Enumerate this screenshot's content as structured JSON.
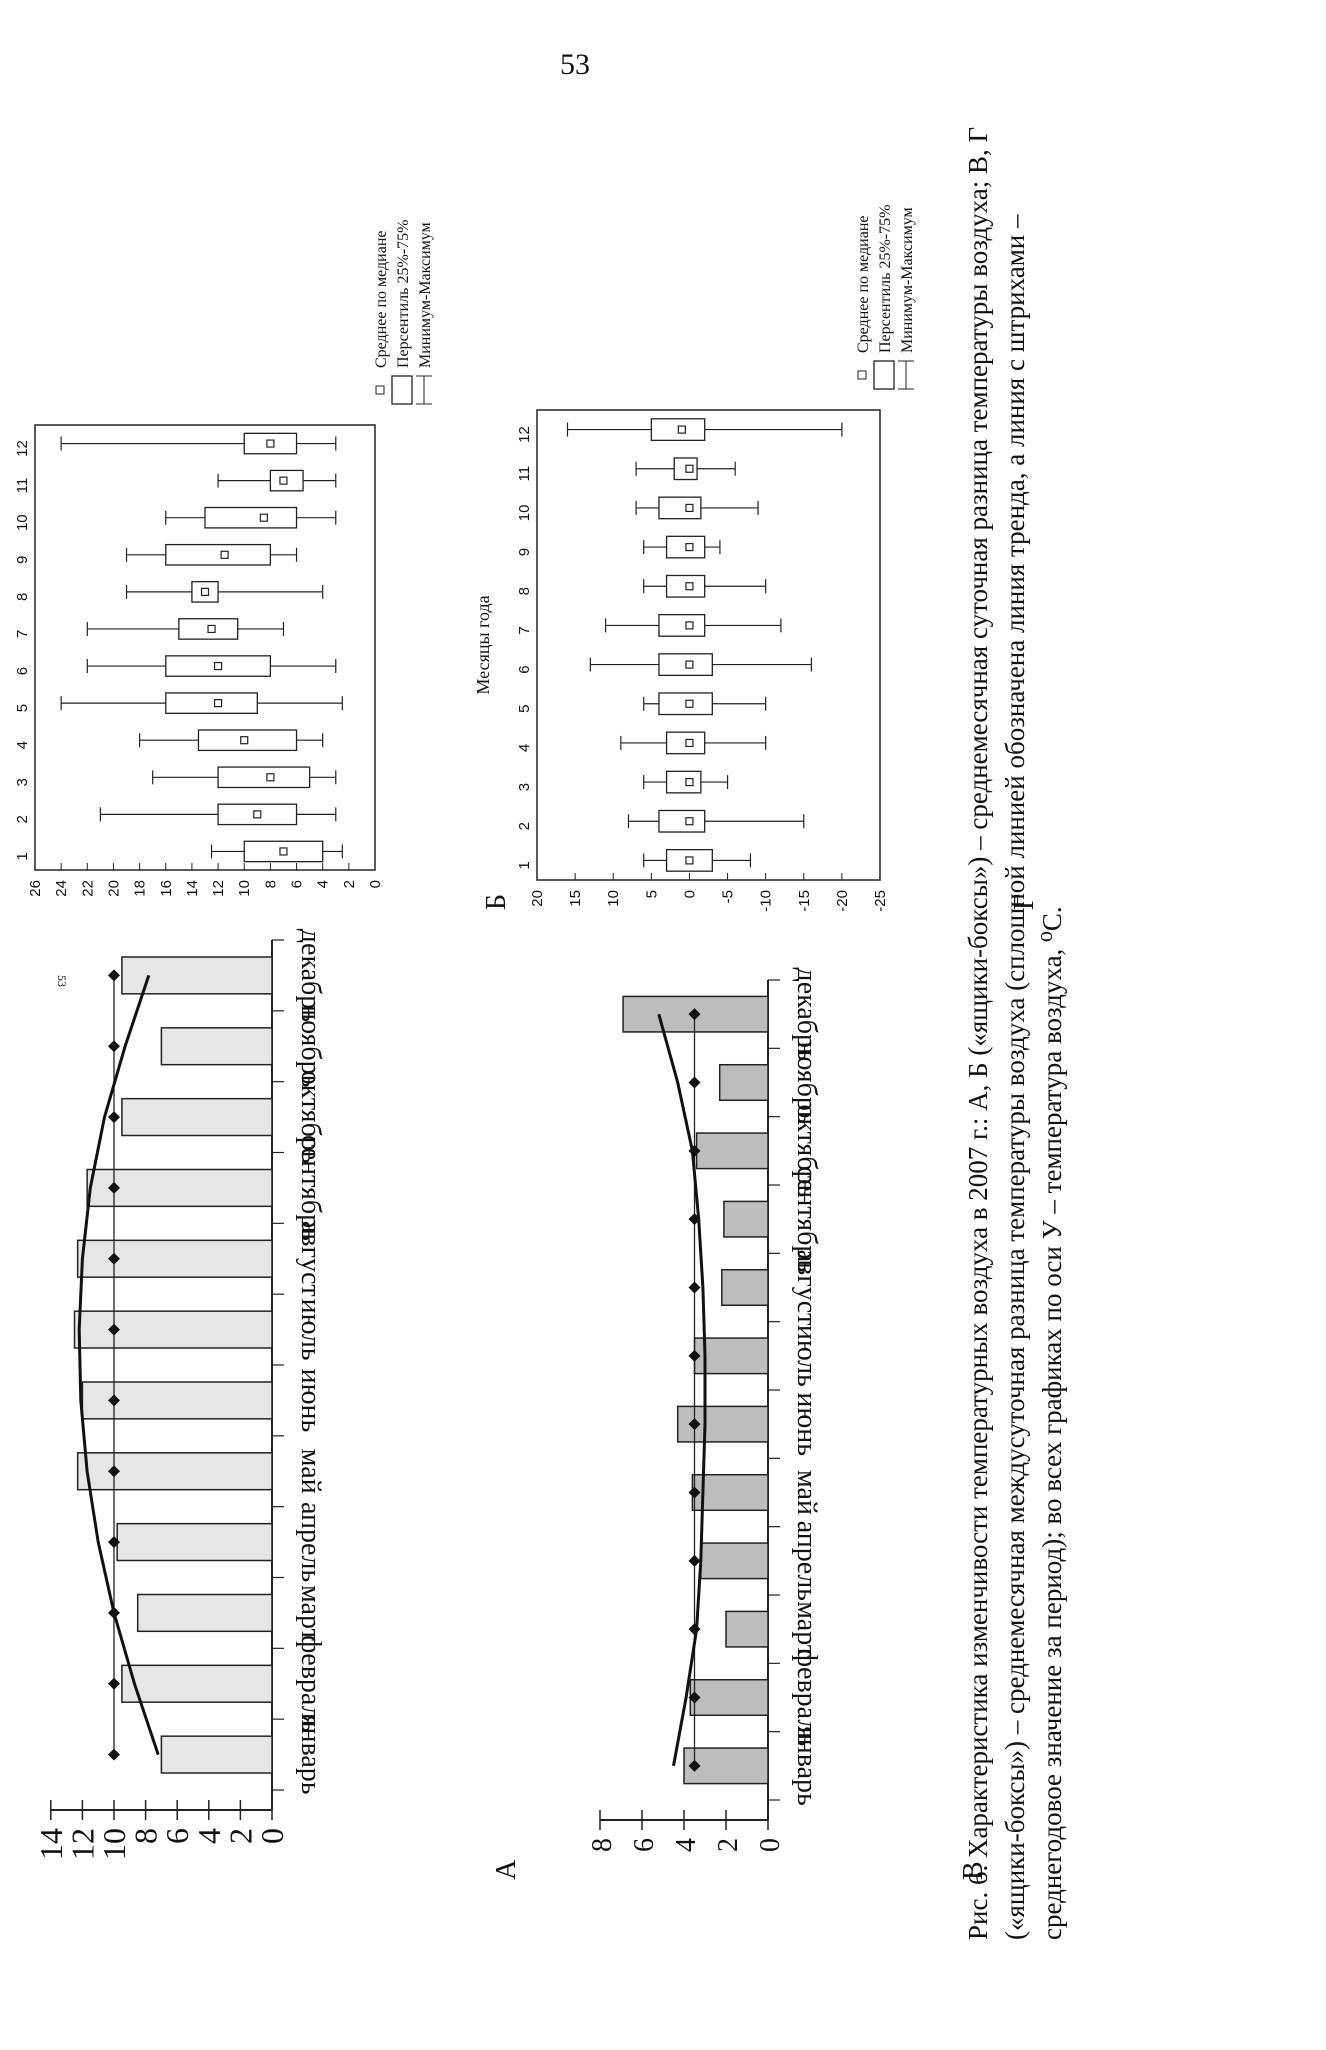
{
  "page_number": "53",
  "running_head": "53",
  "caption": "Рис. 6. Характеристика изменчивости температурных воздуха в 2007 г.: А, Б («ящики-боксы») – среднемесячная суточная разница температуры воздуха; В, Г («ящики-боксы») – среднемесячная междусуточная разница температуры воздуха (сплошной линией обозначена линия тренда, а линия с штрихами – среднегодовое значение за период); во всех графиках по оси У – температура воздуха, ⁰С.",
  "panel_labels": {
    "a": "А",
    "b": "Б",
    "v": "В",
    "g": "Г"
  },
  "months": [
    "январь",
    "февраль",
    "март",
    "апрель",
    "май",
    "июнь",
    "июль",
    "август",
    "сентябрь",
    "октябрь",
    "ноябрь",
    "декабрь"
  ],
  "legend": {
    "mean": "Среднее по медиане",
    "box": "Персентиль 25%-75%",
    "whisker": "Минимум-Максимум"
  },
  "box_xlabel": "Месяцы года",
  "chart_data": [
    {
      "panel": "А",
      "type": "bar",
      "categories": [
        "январь",
        "февраль",
        "март",
        "апрель",
        "май",
        "июнь",
        "июль",
        "август",
        "сентябрь",
        "октябрь",
        "ноябрь",
        "декабрь"
      ],
      "values": [
        7,
        9.5,
        8.5,
        9.8,
        12.3,
        12,
        12.5,
        12.3,
        11.7,
        9.5,
        7,
        9.5
      ],
      "mean": 10,
      "trend": [
        7.2,
        8.7,
        10,
        11,
        11.7,
        12.1,
        12.2,
        12,
        11.5,
        10.6,
        9.3,
        7.8
      ],
      "yticks": [
        0,
        2,
        4,
        6,
        8,
        10,
        12,
        14
      ],
      "ylim": [
        0,
        14
      ]
    },
    {
      "panel": "Б",
      "type": "box",
      "categories": [
        "1",
        "2",
        "3",
        "4",
        "5",
        "6",
        "7",
        "8",
        "9",
        "10",
        "11",
        "12"
      ],
      "mean": [
        7,
        9,
        8,
        10,
        12,
        12,
        12.5,
        13,
        11.5,
        8.5,
        7,
        8
      ],
      "q1": [
        4,
        6,
        5,
        6,
        9,
        8,
        10.5,
        12,
        8,
        6,
        5.5,
        6
      ],
      "q3": [
        10,
        12,
        12,
        13.5,
        16,
        16,
        15,
        14,
        16,
        13,
        8,
        10
      ],
      "min": [
        2.5,
        3,
        3,
        4,
        2.5,
        3,
        7,
        4,
        6,
        3,
        3,
        3
      ],
      "max": [
        12.5,
        21,
        17,
        18,
        24,
        22,
        22,
        19,
        19,
        16,
        12,
        24
      ],
      "yticks": [
        0,
        2,
        4,
        6,
        8,
        10,
        12,
        14,
        16,
        18,
        20,
        22,
        24,
        26
      ],
      "ylim": [
        0,
        26
      ]
    },
    {
      "panel": "В",
      "type": "bar",
      "categories": [
        "январь",
        "февраль",
        "март",
        "апрель",
        "май",
        "июнь",
        "июль",
        "август",
        "сентябрь",
        "октябрь",
        "ноябрь",
        "декабрь"
      ],
      "values": [
        4,
        3.7,
        2,
        3.2,
        3.6,
        4.3,
        3.5,
        2.2,
        2.1,
        3.4,
        2.3,
        6.9
      ],
      "mean": 3.5,
      "trend": [
        4.5,
        3.9,
        3.4,
        3.2,
        3.1,
        3.0,
        3.0,
        3.1,
        3.3,
        3.6,
        4.3,
        5.2
      ],
      "yticks": [
        0,
        2,
        4,
        6,
        8
      ],
      "ylim": [
        0,
        8
      ]
    },
    {
      "panel": "Г",
      "type": "box",
      "categories": [
        "1",
        "2",
        "3",
        "4",
        "5",
        "6",
        "7",
        "8",
        "9",
        "10",
        "11",
        "12"
      ],
      "mean": [
        0,
        0,
        0,
        0,
        0,
        0,
        0,
        0,
        0,
        0,
        0,
        1
      ],
      "q1": [
        -3,
        -2,
        -1.5,
        -2,
        -3,
        -3,
        -2,
        -2,
        -2,
        -1.5,
        -1,
        -2
      ],
      "q3": [
        3,
        4,
        3,
        3,
        4,
        4,
        4,
        3,
        3,
        4,
        2,
        5
      ],
      "min": [
        -8,
        -15,
        -5,
        -10,
        -10,
        -16,
        -12,
        -10,
        -4,
        -9,
        -6,
        -20
      ],
      "max": [
        6,
        8,
        6,
        9,
        6,
        13,
        11,
        6,
        6,
        7,
        7,
        16
      ],
      "yticks": [
        -25,
        -20,
        -15,
        -10,
        -5,
        0,
        5,
        10,
        15,
        20
      ],
      "ylim": [
        -25,
        20
      ]
    }
  ]
}
